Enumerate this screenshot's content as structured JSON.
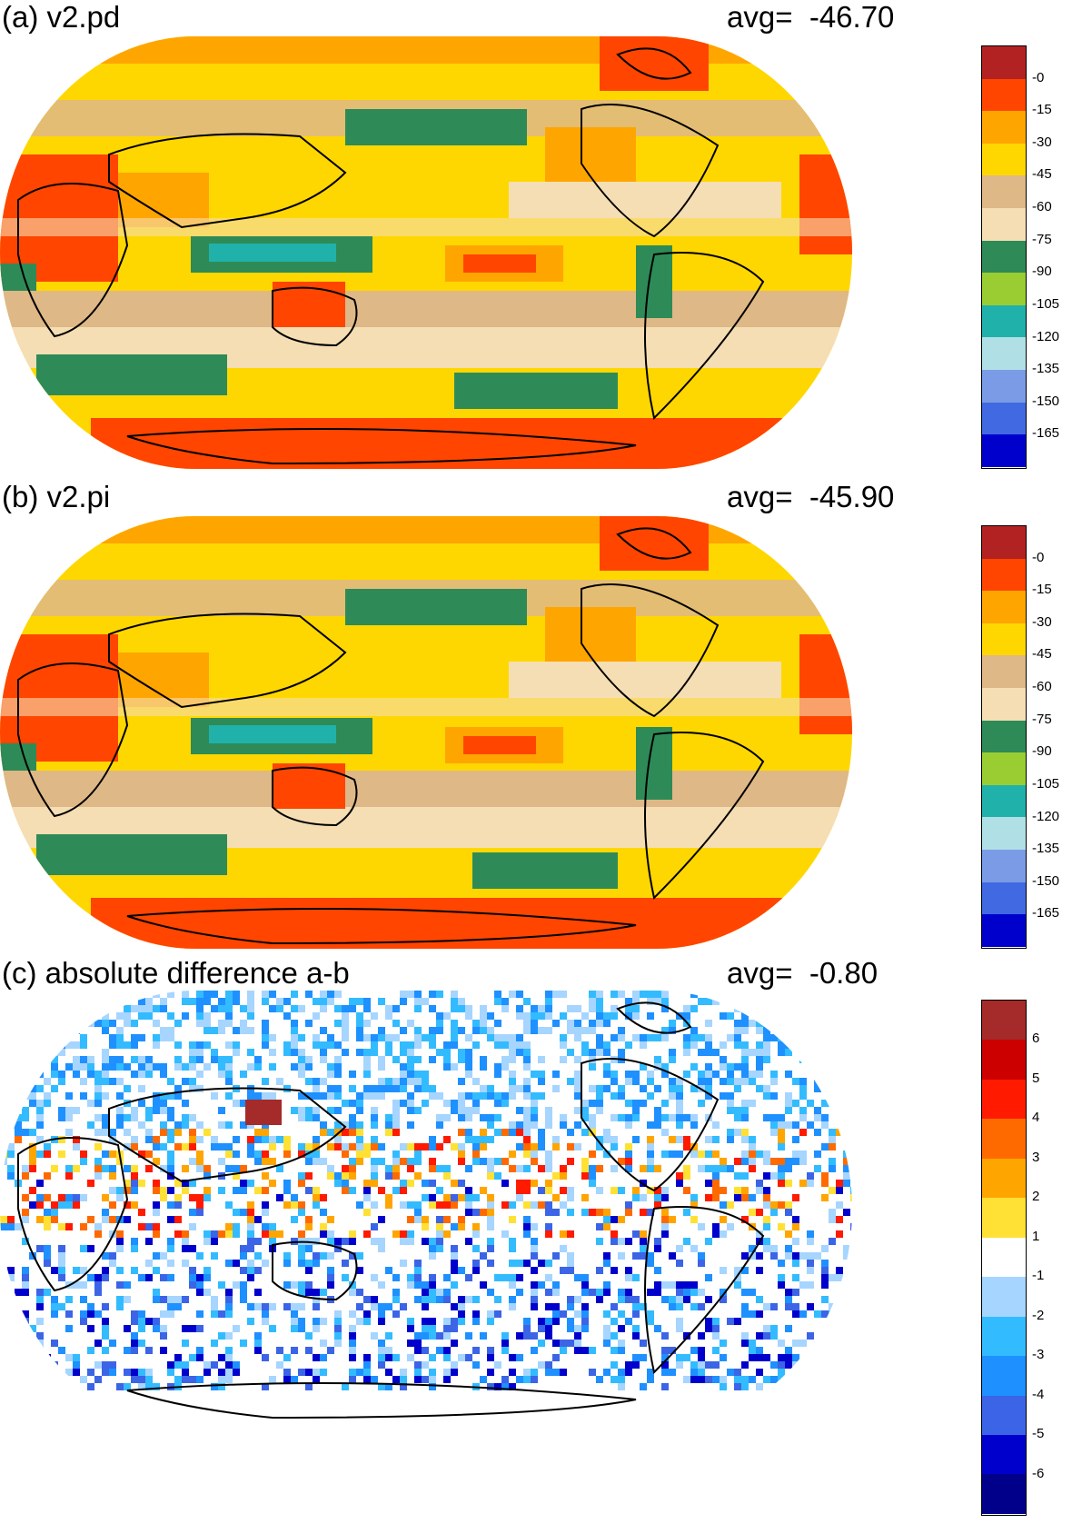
{
  "panels": [
    {
      "label": "(a) v2.pd",
      "avg_label": "avg=",
      "avg_value": "-46.70",
      "colorbar": {
        "ticks": [
          "-0",
          "-15",
          "-30",
          "-45",
          "-60",
          "-75",
          "-90",
          "-105",
          "-120",
          "-135",
          "-150",
          "-165"
        ],
        "colors": [
          "#b22222",
          "#ff4500",
          "#ffa500",
          "#ffd700",
          "#deb887",
          "#f5deb3",
          "#2e8b57",
          "#9acd32",
          "#20b2aa",
          "#b0e0e6",
          "#7b9be6",
          "#4169e1",
          "#0000cd"
        ]
      }
    },
    {
      "label": "(b) v2.pi",
      "avg_label": "avg=",
      "avg_value": "-45.90",
      "colorbar": {
        "ticks": [
          "-0",
          "-15",
          "-30",
          "-45",
          "-60",
          "-75",
          "-90",
          "-105",
          "-120",
          "-135",
          "-150",
          "-165"
        ],
        "colors": [
          "#b22222",
          "#ff4500",
          "#ffa500",
          "#ffd700",
          "#deb887",
          "#f5deb3",
          "#2e8b57",
          "#9acd32",
          "#20b2aa",
          "#b0e0e6",
          "#7b9be6",
          "#4169e1",
          "#0000cd"
        ]
      }
    },
    {
      "label": "(c) absolute difference a-b",
      "avg_label": "avg=",
      "avg_value": "-0.80",
      "colorbar": {
        "ticks": [
          "6",
          "5",
          "4",
          "3",
          "2",
          "1",
          "-1",
          "-2",
          "-3",
          "-4",
          "-5",
          "-6"
        ],
        "colors": [
          "#a52a2a",
          "#cd0000",
          "#ff1a00",
          "#ff6a00",
          "#ffa500",
          "#ffe135",
          "#ffffff",
          "#a6d5ff",
          "#33bbff",
          "#1e90ff",
          "#3c64e6",
          "#0000cd",
          "#00008b"
        ]
      }
    }
  ]
}
